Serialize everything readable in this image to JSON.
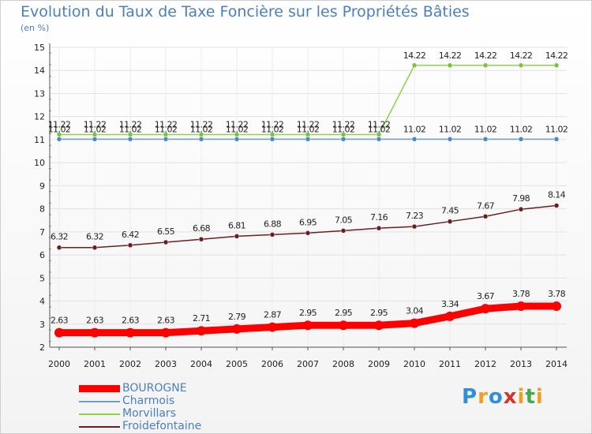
{
  "chart_data": {
    "type": "line",
    "title": "Evolution du Taux de Taxe Foncière sur les Propriétés Bâties",
    "subtitle": "(en %)",
    "xlabel": "",
    "ylabel": "",
    "x": [
      "2000",
      "2001",
      "2002",
      "2003",
      "2004",
      "2005",
      "2006",
      "2007",
      "2008",
      "2009",
      "2010",
      "2011",
      "2012",
      "2013",
      "2014"
    ],
    "ylim": [
      2,
      15
    ],
    "yticks": [
      "2",
      "3",
      "4",
      "5",
      "6",
      "7",
      "8",
      "9",
      "10",
      "11",
      "12",
      "13",
      "14",
      "15"
    ],
    "grid": true,
    "legend_position": "bottom-left",
    "series": [
      {
        "name": "BOUROGNE",
        "color": "#ff0000",
        "values": [
          2.63,
          2.63,
          2.63,
          2.63,
          2.71,
          2.79,
          2.87,
          2.95,
          2.95,
          2.95,
          3.04,
          3.34,
          3.67,
          3.78,
          3.78
        ],
        "labels": [
          "2.63",
          "2.63",
          "2.63",
          "2.63",
          "2.71",
          "2.79",
          "2.87",
          "2.95",
          "2.95",
          "2.95",
          "3.04",
          "3.34",
          "3.67",
          "3.78",
          "3.78"
        ]
      },
      {
        "name": "Charmois",
        "color": "#6a9fce",
        "values": [
          11.02,
          11.02,
          11.02,
          11.02,
          11.02,
          11.02,
          11.02,
          11.02,
          11.02,
          11.02,
          11.02,
          11.02,
          11.02,
          11.02,
          11.02
        ],
        "labels": [
          "11.02",
          "11.02",
          "11.02",
          "11.02",
          "11.02",
          "11.02",
          "11.02",
          "11.02",
          "11.02",
          "11.02",
          "11.02",
          "11.02",
          "11.02",
          "11.02",
          "11.02"
        ]
      },
      {
        "name": "Morvillars",
        "color": "#8fd14a",
        "values": [
          11.22,
          11.22,
          11.22,
          11.22,
          11.22,
          11.22,
          11.22,
          11.22,
          11.22,
          11.22,
          14.22,
          14.22,
          14.22,
          14.22,
          14.22
        ],
        "labels": [
          "11.22",
          "11.22",
          "11.22",
          "11.22",
          "11.22",
          "11.22",
          "11.22",
          "11.22",
          "11.22",
          "11.22",
          "14.22",
          "14.22",
          "14.22",
          "14.22",
          "14.22"
        ]
      },
      {
        "name": "Froidefontaine",
        "color": "#6b1e22",
        "values": [
          6.32,
          6.32,
          6.42,
          6.55,
          6.68,
          6.81,
          6.88,
          6.95,
          7.05,
          7.16,
          7.23,
          7.45,
          7.67,
          7.98,
          8.14
        ],
        "labels": [
          "6.32",
          "6.32",
          "6.42",
          "6.55",
          "6.68",
          "6.81",
          "6.88",
          "6.95",
          "7.05",
          "7.16",
          "7.23",
          "7.45",
          "7.67",
          "7.98",
          "8.14"
        ]
      }
    ]
  },
  "legend": {
    "items": [
      "BOUROGNE",
      "Charmois",
      "Morvillars",
      "Froidefontaine"
    ]
  },
  "brand": {
    "letters": [
      "P",
      "r",
      "o",
      "x",
      "i",
      "t",
      "i"
    ],
    "colors": [
      "#2f8fd8",
      "#f0a020",
      "#2f8fd8",
      "#d8332f",
      "#f0a020",
      "#4aa84a",
      "#f0a020"
    ]
  }
}
